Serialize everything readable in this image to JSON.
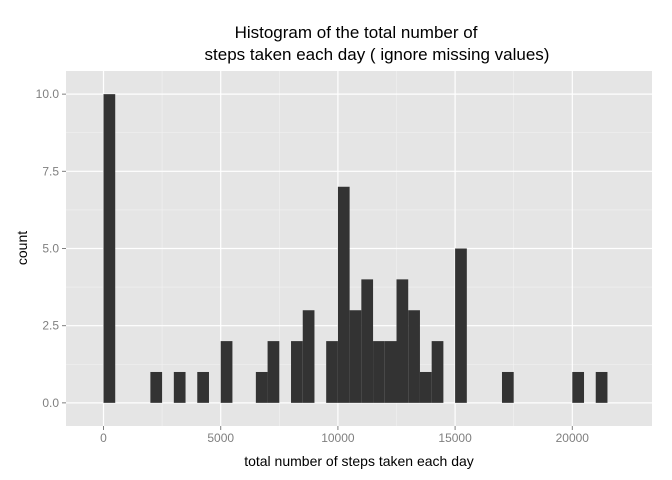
{
  "chart_data": {
    "type": "bar",
    "title_lines": [
      "Histogram of the total number of",
      "steps taken each day ( ignore missing values)"
    ],
    "xlabel": "total number of steps taken each day",
    "ylabel": "count",
    "xlim": [
      -1600,
      23400
    ],
    "ylim": [
      -0.75,
      10.75
    ],
    "x_ticks": [
      0,
      5000,
      10000,
      15000,
      20000
    ],
    "x_tick_labels": [
      "0",
      "5000",
      "10000",
      "15000",
      "20000"
    ],
    "y_ticks": [
      0,
      2.5,
      5,
      7.5,
      10
    ],
    "y_tick_labels": [
      "0.0",
      "2.5",
      "5.0",
      "7.5",
      "10.0"
    ],
    "bin_width": 500,
    "bars": [
      {
        "x": 250,
        "count": 10
      },
      {
        "x": 2250,
        "count": 1
      },
      {
        "x": 3250,
        "count": 1
      },
      {
        "x": 4250,
        "count": 1
      },
      {
        "x": 5250,
        "count": 2
      },
      {
        "x": 6750,
        "count": 1
      },
      {
        "x": 7250,
        "count": 2
      },
      {
        "x": 8250,
        "count": 2
      },
      {
        "x": 8750,
        "count": 3
      },
      {
        "x": 9750,
        "count": 2
      },
      {
        "x": 10250,
        "count": 7
      },
      {
        "x": 10750,
        "count": 3
      },
      {
        "x": 11250,
        "count": 4
      },
      {
        "x": 11750,
        "count": 2
      },
      {
        "x": 12250,
        "count": 2
      },
      {
        "x": 12750,
        "count": 4
      },
      {
        "x": 13250,
        "count": 3
      },
      {
        "x": 13750,
        "count": 1
      },
      {
        "x": 14250,
        "count": 2
      },
      {
        "x": 15250,
        "count": 5
      },
      {
        "x": 17250,
        "count": 1
      },
      {
        "x": 20250,
        "count": 1
      },
      {
        "x": 21250,
        "count": 1
      }
    ],
    "grid": true,
    "colors": {
      "panel_background": "#e5e5e5",
      "grid_major": "#ffffff",
      "grid_minor": "#f2f2f2",
      "bar_fill": "#333333",
      "tick_color": "#7f7f7f"
    }
  }
}
